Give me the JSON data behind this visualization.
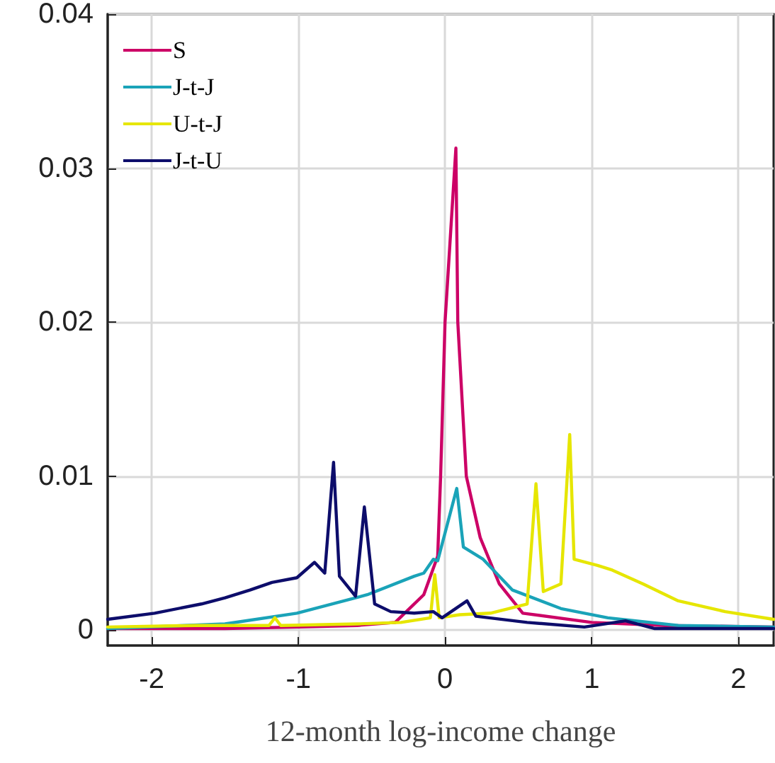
{
  "chart_data": {
    "type": "line",
    "xlabel": "12-month log-income change",
    "xlim": [
      -2.3,
      2.24
    ],
    "xticks": [
      -2,
      -1,
      0,
      1,
      2
    ],
    "ylim": [
      -0.001,
      0.04
    ],
    "yticks": [
      0,
      0.01,
      0.02,
      0.03,
      0.04
    ],
    "grid": true,
    "legend": "top left",
    "marker": "none",
    "line_style": "solid",
    "series": [
      {
        "name": "S",
        "color": "#cc0066",
        "x": [
          -2.3,
          -1.5,
          -1.0,
          -0.6,
          -0.34,
          -0.145,
          -0.05,
          -0.03,
          0.0,
          0.074,
          0.087,
          0.145,
          0.24,
          0.37,
          0.53,
          1.0,
          1.5,
          2.24
        ],
        "values": [
          0.0001,
          0.0001,
          0.0002,
          0.0003,
          0.0005,
          0.0023,
          0.0048,
          0.01,
          0.02,
          0.0313,
          0.02,
          0.01,
          0.006,
          0.003,
          0.0011,
          0.0005,
          0.0003,
          0.0002
        ]
      },
      {
        "name": "J-t-J",
        "color": "#1aa3b8",
        "x": [
          -2.3,
          -1.5,
          -1.01,
          -0.53,
          -0.21,
          -0.145,
          -0.08,
          -0.05,
          0.08,
          0.125,
          0.26,
          0.46,
          0.79,
          1.11,
          1.59,
          2.24
        ],
        "values": [
          0.0001,
          0.0004,
          0.0011,
          0.0023,
          0.0035,
          0.0037,
          0.0046,
          0.0045,
          0.0092,
          0.0054,
          0.0046,
          0.0026,
          0.0014,
          0.0008,
          0.0003,
          0.0002
        ]
      },
      {
        "name": "U-t-J",
        "color": "#e6e600",
        "x": [
          -2.3,
          -1.7,
          -1.2,
          -1.16,
          -1.12,
          -0.6,
          -0.3,
          -0.1,
          -0.07,
          -0.04,
          0.1,
          0.31,
          0.56,
          0.62,
          0.67,
          0.79,
          0.85,
          0.88,
          1.04,
          1.14,
          1.35,
          1.59,
          1.91,
          2.24
        ],
        "values": [
          0.0002,
          0.0003,
          0.0003,
          0.0008,
          0.0003,
          0.0004,
          0.0005,
          0.0008,
          0.0036,
          0.0008,
          0.001,
          0.0011,
          0.0017,
          0.0095,
          0.0025,
          0.003,
          0.0127,
          0.0046,
          0.0042,
          0.0039,
          0.003,
          0.0019,
          0.0012,
          0.0007
        ]
      },
      {
        "name": "J-t-U",
        "color": "#0d0d6b",
        "x": [
          -2.3,
          -1.98,
          -1.66,
          -1.5,
          -1.33,
          -1.18,
          -1.01,
          -0.89,
          -0.82,
          -0.76,
          -0.72,
          -0.61,
          -0.55,
          -0.48,
          -0.37,
          -0.21,
          -0.08,
          -0.02,
          0.15,
          0.21,
          0.56,
          0.95,
          1.23,
          1.43,
          2.24
        ],
        "values": [
          0.0007,
          0.0011,
          0.0017,
          0.0021,
          0.0026,
          0.0031,
          0.0034,
          0.0044,
          0.0037,
          0.0109,
          0.0035,
          0.0022,
          0.008,
          0.0017,
          0.0012,
          0.0011,
          0.0012,
          0.0008,
          0.0019,
          0.0009,
          0.0005,
          0.0002,
          0.0006,
          0.0001,
          0.0001
        ]
      }
    ]
  }
}
